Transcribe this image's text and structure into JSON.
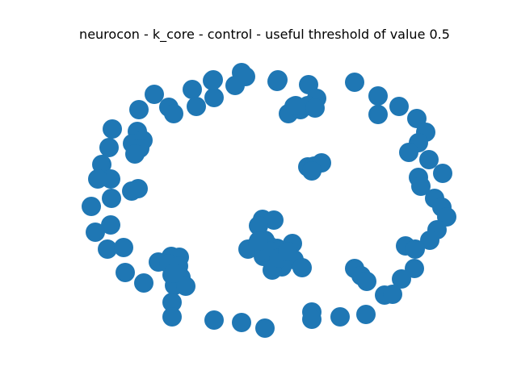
{
  "title": "neurocon - k_core - control - useful threshold of value 0.5",
  "node_color": "#1f77b4",
  "node_count": 112,
  "edge_count": 0
}
